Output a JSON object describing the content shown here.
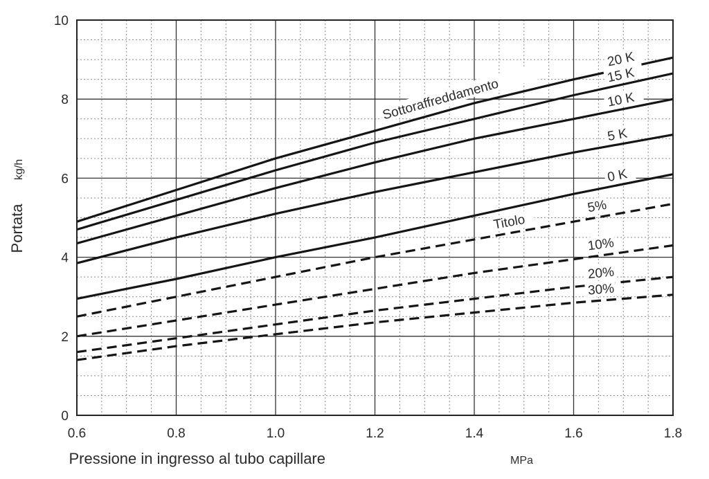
{
  "chart_data": {
    "type": "line",
    "title": "",
    "xlabel": "Pressione in ingresso al tubo capillare",
    "xunit": "MPa",
    "ylabel": "Portata",
    "yunit": "kg/h",
    "xlim": [
      0.6,
      1.8
    ],
    "ylim": [
      0,
      10
    ],
    "grid": true,
    "x_ticks": [
      0.6,
      0.8,
      1.0,
      1.2,
      1.4,
      1.6,
      1.8
    ],
    "x_tick_labels": [
      "0.6",
      "0.8",
      "1.0",
      "1.2",
      "1.4",
      "1.6",
      "1.8"
    ],
    "y_ticks": [
      0,
      2,
      4,
      6,
      8,
      10
    ],
    "y_tick_labels": [
      "0",
      "2",
      "4",
      "6",
      "8",
      "10"
    ],
    "series_group_labels": [
      "Sottoraffreddamento",
      "Titolo"
    ],
    "series": [
      {
        "name": "20 K",
        "group": "Sottoraffreddamento",
        "style": "solid",
        "x": [
          0.6,
          0.8,
          1.0,
          1.2,
          1.4,
          1.6,
          1.8
        ],
        "values": [
          4.9,
          5.7,
          6.5,
          7.2,
          7.9,
          8.5,
          9.05
        ]
      },
      {
        "name": "15 K",
        "group": "Sottoraffreddamento",
        "style": "solid",
        "x": [
          0.6,
          0.8,
          1.0,
          1.2,
          1.4,
          1.6,
          1.8
        ],
        "values": [
          4.7,
          5.45,
          6.2,
          6.9,
          7.5,
          8.1,
          8.65
        ]
      },
      {
        "name": "10 K",
        "group": "Sottoraffreddamento",
        "style": "solid",
        "x": [
          0.6,
          0.8,
          1.0,
          1.2,
          1.4,
          1.6,
          1.8
        ],
        "values": [
          4.35,
          5.05,
          5.75,
          6.4,
          7.0,
          7.5,
          8.0
        ]
      },
      {
        "name": "5 K",
        "group": "Sottoraffreddamento",
        "style": "solid",
        "x": [
          0.6,
          0.8,
          1.0,
          1.2,
          1.4,
          1.6,
          1.8
        ],
        "values": [
          3.85,
          4.5,
          5.1,
          5.65,
          6.15,
          6.65,
          7.1
        ]
      },
      {
        "name": "0 K",
        "group": "Sottoraffreddamento",
        "style": "solid",
        "x": [
          0.6,
          0.8,
          1.0,
          1.2,
          1.4,
          1.6,
          1.8
        ],
        "values": [
          2.95,
          3.45,
          4.0,
          4.5,
          5.05,
          5.6,
          6.1
        ]
      },
      {
        "name": "5%",
        "group": "Titolo",
        "style": "dashed",
        "x": [
          0.6,
          0.8,
          1.0,
          1.2,
          1.4,
          1.6,
          1.8
        ],
        "values": [
          2.5,
          3.0,
          3.5,
          4.0,
          4.45,
          4.9,
          5.35
        ]
      },
      {
        "name": "10%",
        "group": "Titolo",
        "style": "dashed",
        "x": [
          0.6,
          0.8,
          1.0,
          1.2,
          1.4,
          1.6,
          1.8
        ],
        "values": [
          2.0,
          2.4,
          2.8,
          3.2,
          3.6,
          3.95,
          4.3
        ]
      },
      {
        "name": "20%",
        "group": "Titolo",
        "style": "dashed",
        "x": [
          0.6,
          0.8,
          1.0,
          1.2,
          1.4,
          1.6,
          1.8
        ],
        "values": [
          1.6,
          1.95,
          2.3,
          2.65,
          2.95,
          3.25,
          3.5
        ]
      },
      {
        "name": "30%",
        "group": "Titolo",
        "style": "dashed",
        "x": [
          0.6,
          0.8,
          1.0,
          1.2,
          1.4,
          1.6,
          1.8
        ],
        "values": [
          1.4,
          1.75,
          2.05,
          2.35,
          2.6,
          2.85,
          3.05
        ]
      }
    ]
  }
}
